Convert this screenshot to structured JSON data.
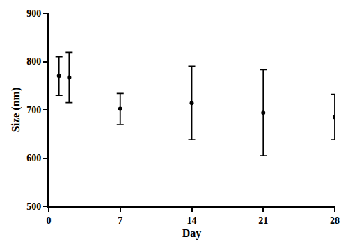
{
  "chart_data": {
    "type": "scatter",
    "x_label": "Day",
    "y_label": "Size (nm)",
    "x": [
      1,
      2,
      7,
      14,
      21,
      28
    ],
    "values": [
      770,
      767,
      702,
      714,
      694,
      685
    ],
    "error": [
      40,
      52,
      32,
      76,
      89,
      47
    ],
    "color": "#000000",
    "marker": "circle",
    "xlim": [
      0,
      28
    ],
    "xticks": [
      0,
      7,
      14,
      21,
      28
    ],
    "ylim": [
      500,
      900
    ],
    "yticks": [
      500,
      600,
      700,
      800,
      900
    ],
    "grid": false
  }
}
